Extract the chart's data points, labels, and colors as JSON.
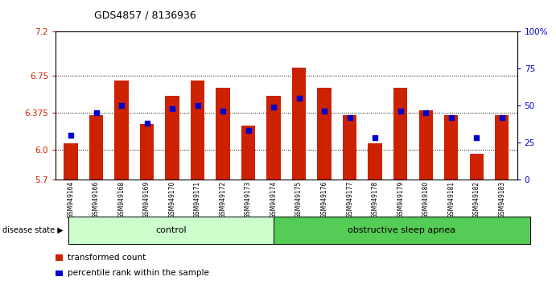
{
  "title": "GDS4857 / 8136936",
  "samples": [
    "GSM949164",
    "GSM949166",
    "GSM949168",
    "GSM949169",
    "GSM949170",
    "GSM949171",
    "GSM949172",
    "GSM949173",
    "GSM949174",
    "GSM949175",
    "GSM949176",
    "GSM949177",
    "GSM949178",
    "GSM949179",
    "GSM949180",
    "GSM949181",
    "GSM949182",
    "GSM949183"
  ],
  "red_values": [
    6.07,
    6.35,
    6.7,
    6.26,
    6.55,
    6.7,
    6.63,
    6.25,
    6.55,
    6.83,
    6.63,
    6.35,
    6.07,
    6.63,
    6.4,
    6.35,
    5.96,
    6.35
  ],
  "blue_values": [
    30,
    45,
    50,
    38,
    48,
    50,
    46,
    33,
    49,
    55,
    46,
    42,
    28,
    46,
    45,
    42,
    28,
    42
  ],
  "ymin": 5.7,
  "ymax": 7.2,
  "y_ticks_left": [
    5.7,
    6.0,
    6.375,
    6.75,
    7.2
  ],
  "y_ticks_right": [
    0,
    25,
    50,
    75,
    100
  ],
  "group_labels": [
    "control",
    "obstructive sleep apnea"
  ],
  "n_control": 8,
  "n_total": 18,
  "group_color_control": "#ccffcc",
  "group_color_osa": "#55cc55",
  "bar_color": "#cc2200",
  "blue_color": "#0000cc",
  "bar_width": 0.55,
  "legend_red": "transformed count",
  "legend_blue": "percentile rank within the sample"
}
